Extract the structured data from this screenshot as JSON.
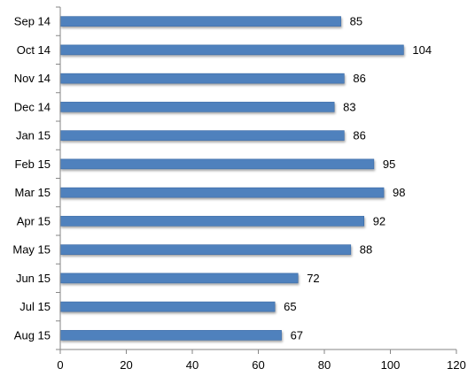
{
  "chart_data": {
    "type": "bar",
    "orientation": "horizontal",
    "title": "",
    "xlabel": "",
    "ylabel": "",
    "categories": [
      "Sep 14",
      "Oct 14",
      "Nov 14",
      "Dec 14",
      "Jan 15",
      "Feb 15",
      "Mar 15",
      "Apr 15",
      "May 15",
      "Jun 15",
      "Jul 15",
      "Aug 15"
    ],
    "values": [
      85,
      104,
      86,
      83,
      86,
      95,
      98,
      92,
      88,
      72,
      65,
      67
    ],
    "xlim": [
      0,
      120
    ],
    "x_ticks": [
      "0",
      "20",
      "40",
      "60",
      "80",
      "100",
      "120"
    ],
    "grid": false,
    "legend": "none",
    "data_labels": true,
    "bar_color": "#4F81BD",
    "bar_edge_color": "#3A6AA5"
  }
}
